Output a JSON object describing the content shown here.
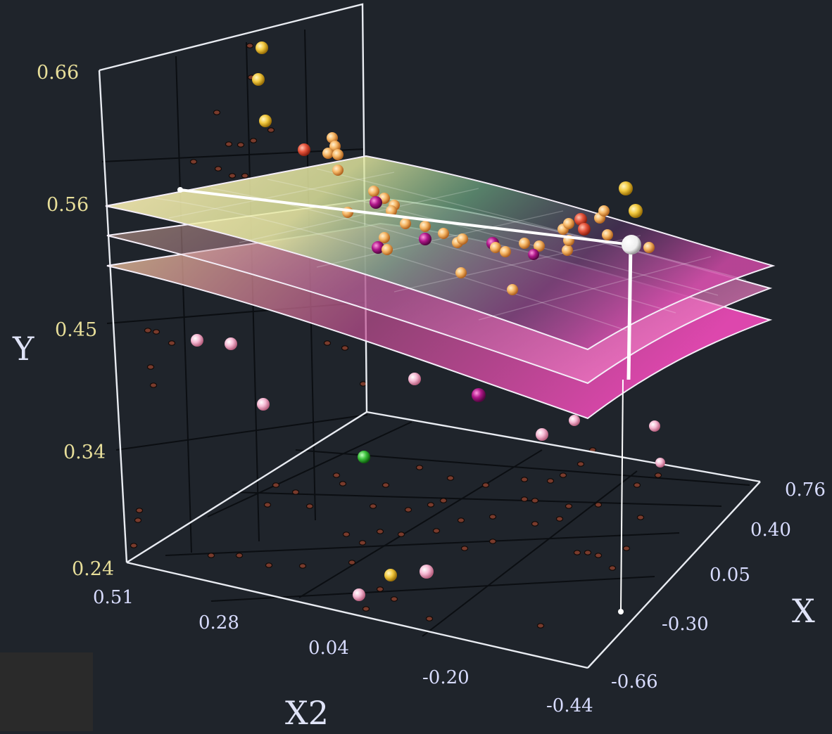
{
  "chart_data": {
    "type": "scatter",
    "subtype": "3d-scatter-with-regression-surfaces",
    "title": "",
    "axes": {
      "y": {
        "label": "Y",
        "ticks": [
          "0.66",
          "0.56",
          "0.45",
          "0.34",
          "0.24"
        ],
        "range": [
          0.24,
          0.66
        ]
      },
      "x": {
        "label": "X",
        "ticks": [
          "0.76",
          "0.40",
          "0.05",
          "-0.30",
          "-0.66"
        ],
        "range": [
          -0.66,
          0.76
        ]
      },
      "x2": {
        "label": "X2",
        "ticks": [
          "0.51",
          "0.28",
          "0.04",
          "-0.20",
          "-0.44"
        ],
        "range": [
          -0.44,
          0.51
        ]
      }
    },
    "surfaces": [
      "upper-confidence",
      "fit",
      "lower-confidence"
    ],
    "grid": true,
    "highlighted_point": {
      "x": -0.66,
      "x2": -0.44,
      "y": 0.53
    },
    "colors": {
      "background": "#1f242b",
      "axis": "#e9ecf2",
      "ytick": "#e8df9a",
      "xtick": "#d8dcff",
      "orange": "#f4b56a",
      "yellow": "#f2c94c",
      "red": "#e8573f",
      "magenta": "#b0178a",
      "pink": "#f4b8d0",
      "green": "#3cc23c"
    }
  }
}
